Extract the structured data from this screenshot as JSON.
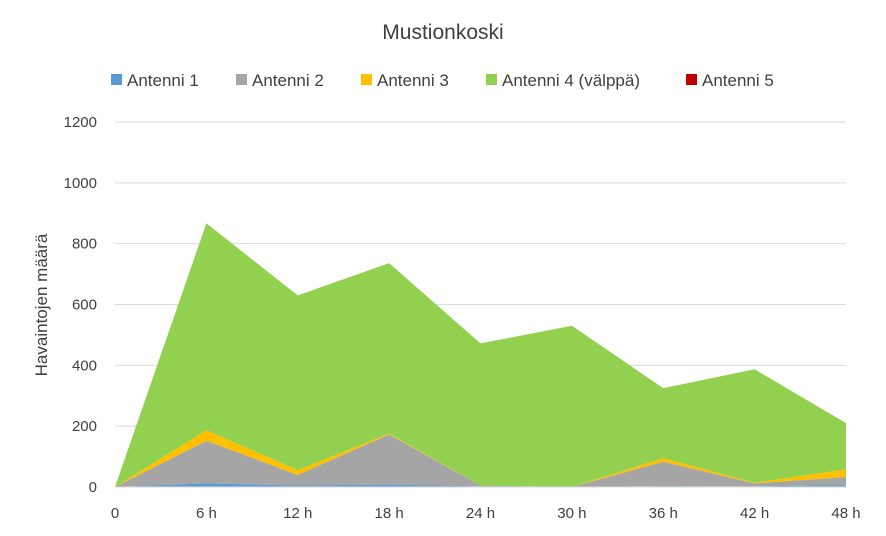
{
  "chart_data": {
    "type": "area",
    "stacked": true,
    "title": "Mustionkoski",
    "ylabel": "Havaintojen määrä",
    "xlabel": "",
    "categories": [
      "0",
      "6 h",
      "12 h",
      "18 h",
      "24 h",
      "30 h",
      "36 h",
      "42 h",
      "48 h"
    ],
    "ylim": [
      0,
      1200
    ],
    "yticks": [
      0,
      200,
      400,
      600,
      800,
      1000,
      1200
    ],
    "grid": true,
    "legend_position": "top",
    "series": [
      {
        "name": "Antenni 1",
        "color": "#5b9bd5",
        "values": [
          0,
          12,
          5,
          8,
          2,
          0,
          3,
          2,
          6
        ]
      },
      {
        "name": "Antenni 2",
        "color": "#a5a5a5",
        "values": [
          0,
          140,
          35,
          165,
          3,
          0,
          80,
          10,
          27
        ]
      },
      {
        "name": "Antenni 3",
        "color": "#ffc000",
        "values": [
          0,
          35,
          15,
          3,
          0,
          0,
          12,
          2,
          25
        ]
      },
      {
        "name": "Antenni 4 (välppä)",
        "color": "#92d050",
        "values": [
          0,
          680,
          575,
          560,
          467,
          530,
          230,
          373,
          152
        ]
      },
      {
        "name": "Antenni 5",
        "color": "#c00000",
        "values": [
          0,
          0,
          0,
          0,
          0,
          0,
          0,
          0,
          0
        ]
      }
    ]
  }
}
